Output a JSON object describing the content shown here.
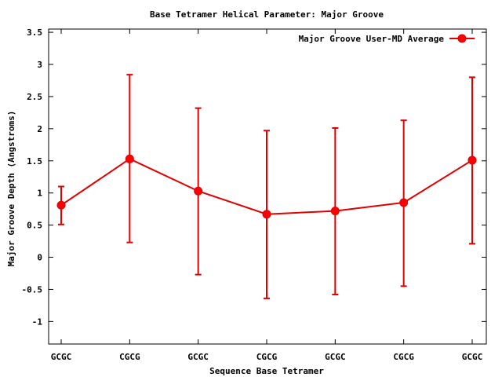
{
  "chart_data": {
    "type": "line",
    "title": "Base Tetramer Helical Parameter: Major Groove",
    "xlabel": "Sequence Base Tetramer",
    "ylabel": "Major Groove Depth (Angstroms)",
    "categories": [
      "GCGC",
      "CGCG",
      "GCGC",
      "CGCG",
      "GCGC",
      "CGCG",
      "GCGC"
    ],
    "y_ticks": [
      "-1",
      "-0.5",
      "0",
      "0.5",
      "1",
      "1.5",
      "2",
      "2.5",
      "3",
      "3.5"
    ],
    "ylim": [
      -1.35,
      3.55
    ],
    "legend_position": "top-right",
    "series": [
      {
        "name": "Major Groove User-MD Average",
        "color": "#e00000",
        "values": [
          0.81,
          1.53,
          1.03,
          0.67,
          0.72,
          0.85,
          1.51
        ],
        "err_low": [
          0.51,
          0.23,
          -0.27,
          -0.64,
          -0.58,
          -0.45,
          0.21
        ],
        "err_high": [
          1.1,
          2.84,
          2.32,
          1.97,
          2.01,
          2.13,
          2.8
        ]
      }
    ]
  }
}
